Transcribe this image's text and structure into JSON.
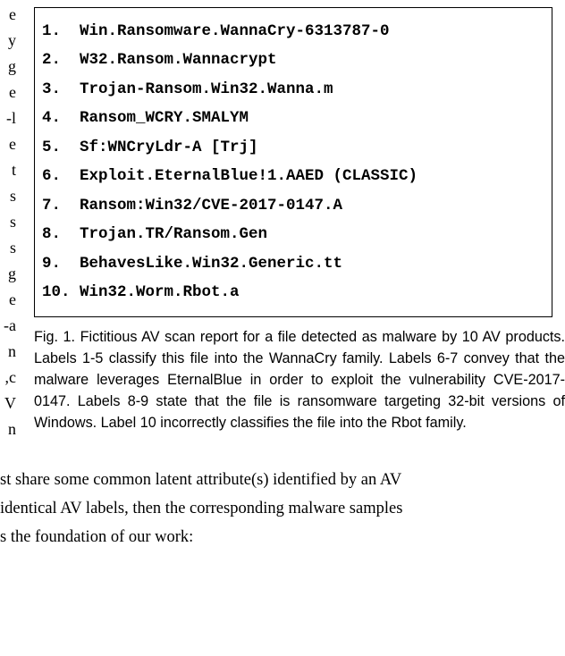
{
  "left_fragments": [
    "e",
    "y",
    "g",
    "e",
    "l-",
    "e",
    "t",
    "s",
    "s",
    "s",
    "g",
    "e",
    "a-",
    "n",
    "c,",
    "V",
    "n"
  ],
  "code_rows": [
    {
      "num": "1.",
      "label": "Win.Ransomware.WannaCry-6313787-0"
    },
    {
      "num": "2.",
      "label": "W32.Ransom.Wannacrypt"
    },
    {
      "num": "3.",
      "label": "Trojan-Ransom.Win32.Wanna.m"
    },
    {
      "num": "4.",
      "label": "Ransom_WCRY.SMALYM"
    },
    {
      "num": "5.",
      "label": "Sf:WNCryLdr-A [Trj]"
    },
    {
      "num": "6.",
      "label": "Exploit.EternalBlue!1.AAED (CLASSIC)"
    },
    {
      "num": "7.",
      "label": "Ransom:Win32/CVE-2017-0147.A"
    },
    {
      "num": "8.",
      "label": "Trojan.TR/Ransom.Gen"
    },
    {
      "num": "9.",
      "label": "BehavesLike.Win32.Generic.tt"
    },
    {
      "num": "10.",
      "label": "Win32.Worm.Rbot.a"
    }
  ],
  "caption": {
    "label": "Fig. 1.",
    "text": "Fictitious AV scan report for a file detected as malware by 10 AV products. Labels 1-5 classify this file into the WannaCry family. Labels 6-7 convey that the malware leverages EternalBlue in order to exploit the vulnerability CVE-2017-0147. Labels 8-9 state that the file is ransomware targeting 32-bit versions of Windows. Label 10 incorrectly classifies the file into the Rbot family."
  },
  "body_lines": [
    "st share some common latent attribute(s) identified by an AV",
    "identical AV labels, then the corresponding malware samples",
    "s the foundation of our work:"
  ]
}
